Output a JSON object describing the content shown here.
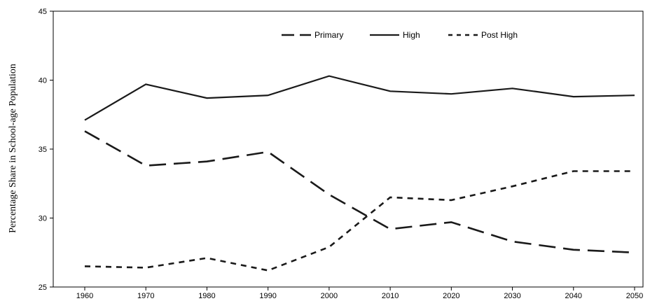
{
  "chart_data": {
    "type": "line",
    "title": "",
    "xlabel": "",
    "ylabel": "Percentage Share in School-age Population",
    "categories": [
      "1960",
      "1970",
      "1980",
      "1990",
      "2000",
      "2010",
      "2020",
      "2030",
      "2040",
      "2050"
    ],
    "ylim": [
      25,
      45
    ],
    "yticks": [
      "25",
      "30",
      "35",
      "40",
      "45"
    ],
    "grid": false,
    "legend_position": "top",
    "series": [
      {
        "name": "Primary",
        "style": "long-dash",
        "color": "#1a1a1a",
        "values": [
          36.3,
          33.8,
          34.1,
          34.8,
          31.7,
          29.2,
          29.7,
          28.3,
          27.7,
          27.5
        ]
      },
      {
        "name": "High",
        "style": "solid",
        "color": "#1a1a1a",
        "values": [
          37.1,
          39.7,
          38.7,
          38.9,
          40.3,
          39.2,
          39.0,
          39.4,
          38.8,
          38.9
        ]
      },
      {
        "name": "Post High",
        "style": "short-dash",
        "color": "#1a1a1a",
        "values": [
          26.5,
          26.4,
          27.1,
          26.2,
          27.9,
          31.5,
          31.3,
          32.3,
          33.4,
          33.4
        ]
      }
    ]
  }
}
